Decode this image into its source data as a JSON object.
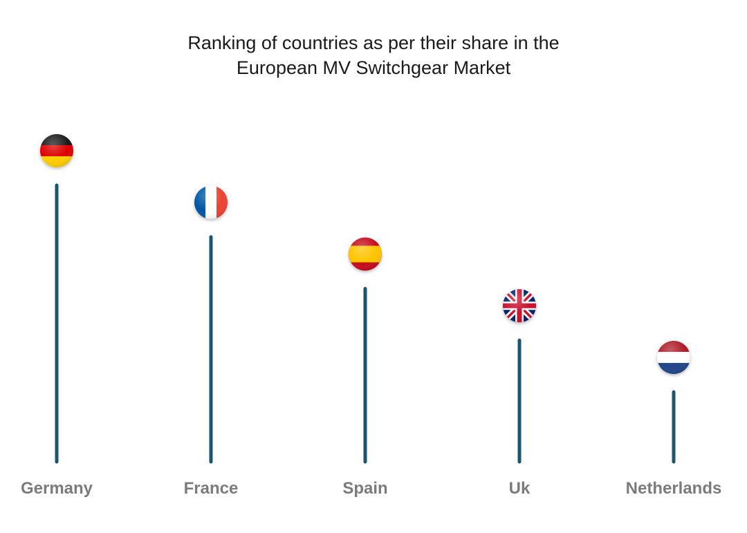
{
  "title_line1": "Ranking of countries as per their share in the",
  "title_line2": "European MV Switchgear Market",
  "chart_data": {
    "type": "lollipop",
    "categories": [
      "Germany",
      "France",
      "Spain",
      "Uk",
      "Netherlands"
    ],
    "values": [
      5,
      4,
      3,
      2,
      1
    ],
    "flags": [
      "germany-flag",
      "france-flag",
      "spain-flag",
      "uk-flag",
      "netherlands-flag"
    ],
    "stem_color": "#1b5570",
    "label_color": "#7b7b7b",
    "axis_numbers_shown": false
  }
}
